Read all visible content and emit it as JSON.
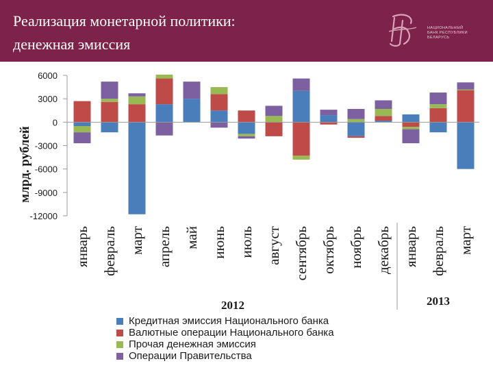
{
  "header": {
    "title_line1": "Реализация монетарной политики:",
    "title_line2": "денежная эмиссия",
    "logo_text": "НАЦИОНАЛЬНЫЙ БАНК РЕСПУБЛИКИ БЕЛАРУСЬ",
    "colors": {
      "background": "#7d2248",
      "title": "#ffffff"
    }
  },
  "chart_data": {
    "type": "bar",
    "stacked": true,
    "ylabel": "млрд. рублей",
    "ylim": [
      -12000,
      6000
    ],
    "yticks": [
      6000,
      3000,
      0,
      -3000,
      -6000,
      -9000,
      -12000
    ],
    "ytick_labels": [
      "6000",
      "3000",
      "0",
      "-3000",
      "-6000",
      "-9000",
      "-12000"
    ],
    "grid": false,
    "legend_position": "bottom",
    "categories": [
      "январь",
      "февраль",
      "март",
      "апрель",
      "май",
      "июнь",
      "июль",
      "август",
      "сентябрь",
      "октябрь",
      "ноябрь",
      "декабрь",
      "январь",
      "февраль",
      "март"
    ],
    "year_groups": [
      {
        "label": "2012",
        "count": 12
      },
      {
        "label": "2013",
        "count": 3
      }
    ],
    "series": [
      {
        "name": "Кредитная эмиссия Национального банка",
        "color": "#4a7ebb",
        "values": [
          -500,
          -1300,
          -11800,
          2300,
          3000,
          1500,
          -1500,
          0,
          4000,
          900,
          -1800,
          200,
          1000,
          -1300,
          -6000
        ]
      },
      {
        "name": "Валютные операции Национального банка",
        "color": "#be4b48",
        "values": [
          2700,
          2600,
          2300,
          3300,
          0,
          2100,
          1500,
          -1800,
          -4300,
          -300,
          -200,
          600,
          -600,
          1800,
          4100
        ]
      },
      {
        "name": "Прочая денежная эмиссия",
        "color": "#98b954",
        "values": [
          -800,
          400,
          1000,
          500,
          0,
          900,
          -300,
          800,
          -500,
          0,
          400,
          900,
          -300,
          500,
          100
        ]
      },
      {
        "name": "Операции Правительства",
        "color": "#7d60a0",
        "values": [
          -1400,
          2200,
          400,
          -1700,
          2200,
          -700,
          -300,
          1300,
          1600,
          700,
          1300,
          1100,
          -1800,
          1500,
          900
        ]
      }
    ]
  }
}
